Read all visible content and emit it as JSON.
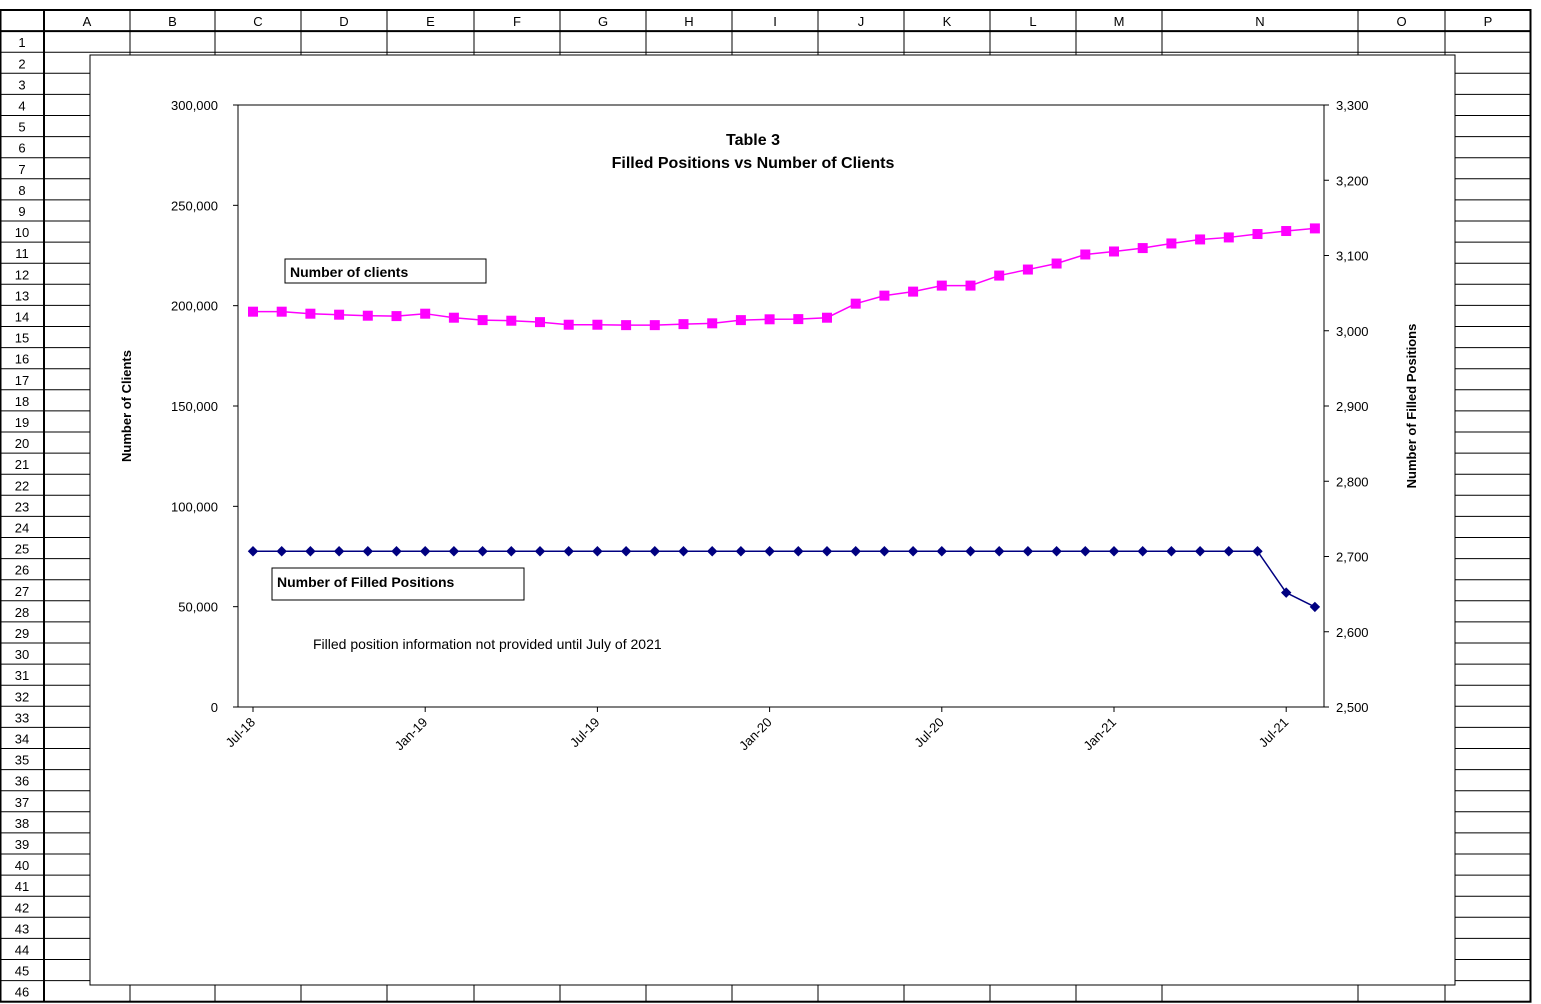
{
  "sheet": {
    "columns": [
      "A",
      "B",
      "C",
      "D",
      "E",
      "F",
      "G",
      "H",
      "I",
      "J",
      "K",
      "L",
      "M",
      "N",
      "O",
      "P"
    ],
    "rows": [
      "1",
      "2",
      "3",
      "4",
      "5",
      "6",
      "7",
      "8",
      "9",
      "10",
      "11",
      "12",
      "13",
      "14",
      "15",
      "16",
      "17",
      "18",
      "19",
      "20",
      "21",
      "22",
      "23",
      "24",
      "25",
      "26",
      "27",
      "28",
      "29",
      "30",
      "31",
      "32",
      "33",
      "34",
      "35",
      "36",
      "37",
      "38",
      "39",
      "40",
      "41",
      "42",
      "43",
      "44",
      "45",
      "46"
    ]
  },
  "chart_data": {
    "type": "line",
    "title": "Table 3",
    "subtitle": "Filled Positions vs Number of Clients",
    "ylabel": "Number of Clients",
    "y2label": "Number of Filled Positions",
    "ylim": [
      0,
      300000
    ],
    "y2lim": [
      2500,
      3300
    ],
    "y_ticks": [
      "0",
      "50,000",
      "100,000",
      "150,000",
      "200,000",
      "250,000",
      "300,000"
    ],
    "y2_ticks": [
      "2,500",
      "2,600",
      "2,700",
      "2,800",
      "2,900",
      "3,000",
      "3,100",
      "3,200",
      "3,300"
    ],
    "x_ticks": [
      "Jul-18",
      "Jan-19",
      "Jul-19",
      "Jan-20",
      "Jul-20",
      "Jan-21",
      "Jul-21"
    ],
    "x": [
      "Jul-18",
      "Aug-18",
      "Sep-18",
      "Oct-18",
      "Nov-18",
      "Dec-18",
      "Jan-19",
      "Feb-19",
      "Mar-19",
      "Apr-19",
      "May-19",
      "Jun-19",
      "Jul-19",
      "Aug-19",
      "Sep-19",
      "Oct-19",
      "Nov-19",
      "Dec-19",
      "Jan-20",
      "Feb-20",
      "Mar-20",
      "Apr-20",
      "May-20",
      "Jun-20",
      "Jul-20",
      "Aug-20",
      "Sep-20",
      "Oct-20",
      "Nov-20",
      "Dec-20",
      "Jan-21",
      "Feb-21",
      "Mar-21",
      "Apr-21",
      "May-21",
      "Jun-21",
      "Jul-21",
      "Aug-21"
    ],
    "series": [
      {
        "name": "Number of clients",
        "axis": "left",
        "color": "#ff00ff",
        "marker": "square",
        "values": [
          197000,
          197000,
          196000,
          195500,
          195000,
          194800,
          196000,
          194000,
          192800,
          192500,
          191800,
          190500,
          190500,
          190300,
          190300,
          190800,
          191200,
          192800,
          193200,
          193300,
          194000,
          201000,
          205000,
          207000,
          210000,
          210000,
          215000,
          218000,
          221000,
          225500,
          227000,
          228700,
          231000,
          233000,
          234000,
          235700,
          237200,
          238500
        ]
      },
      {
        "name": "Number of Filled Positions",
        "axis": "right",
        "color": "#000080",
        "marker": "diamond",
        "values": [
          2707,
          2707,
          2707,
          2707,
          2707,
          2707,
          2707,
          2707,
          2707,
          2707,
          2707,
          2707,
          2707,
          2707,
          2707,
          2707,
          2707,
          2707,
          2707,
          2707,
          2707,
          2707,
          2707,
          2707,
          2707,
          2707,
          2707,
          2707,
          2707,
          2707,
          2707,
          2707,
          2707,
          2707,
          2707,
          2707,
          2652,
          2633
        ]
      }
    ],
    "annotation": "Filled position information not provided until July of 2021"
  }
}
